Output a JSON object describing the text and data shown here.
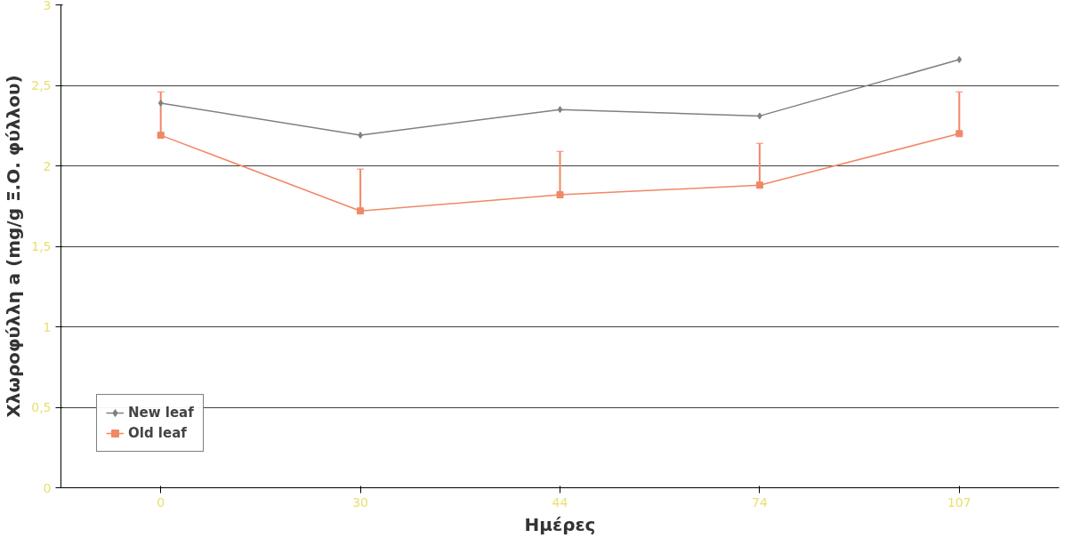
{
  "chart_data": {
    "type": "line",
    "xlabel": "Ημέρες",
    "ylabel": "Χλωροφύλλη a (mg/g Ξ.Ο. φύλλου)",
    "categories": [
      "0",
      "30",
      "44",
      "74",
      "107"
    ],
    "series": [
      {
        "name": "New leaf",
        "color": "#808080",
        "marker": "diamond",
        "values": [
          2.39,
          2.19,
          2.35,
          2.31,
          2.66
        ]
      },
      {
        "name": "Old leaf",
        "color": "#f08866",
        "marker": "square",
        "values": [
          2.19,
          1.72,
          1.82,
          1.88,
          2.2
        ],
        "errors": [
          [
            2.19,
            2.46
          ],
          [
            1.72,
            1.98
          ],
          [
            1.82,
            2.09
          ],
          [
            1.88,
            2.14
          ],
          [
            2.2,
            2.46
          ]
        ]
      }
    ],
    "ylim": [
      0,
      3
    ],
    "yticks": [
      0,
      {
        "value": 0.5,
        "label": "0,5"
      },
      1,
      {
        "value": 1.5,
        "label": "1,5"
      },
      2,
      {
        "value": 2.5,
        "label": "2,5"
      },
      3
    ],
    "grid": "y",
    "legend": "bottom left",
    "line_style": "solid"
  }
}
